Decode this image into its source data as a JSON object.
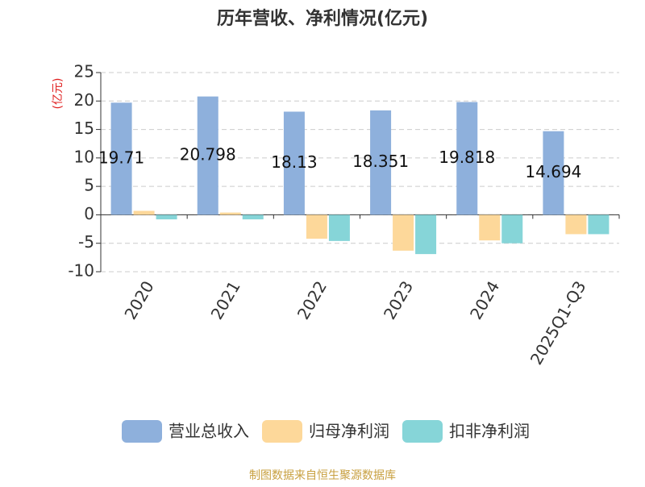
{
  "chart_data": {
    "type": "bar",
    "title": "历年营收、净利情况(亿元)",
    "y_label": "(亿元)",
    "categories": [
      "2020",
      "2021",
      "2022",
      "2023",
      "2024",
      "2025Q1-Q3"
    ],
    "series": [
      {
        "name": "营业总收入",
        "color": "#8eb0dc",
        "values": [
          19.71,
          20.798,
          18.13,
          18.351,
          19.818,
          14.694
        ],
        "show_labels": true
      },
      {
        "name": "归母净利润",
        "color": "#fdd89a",
        "values": [
          0.7,
          0.4,
          -4.2,
          -6.3,
          -4.5,
          -3.4
        ],
        "show_labels": false
      },
      {
        "name": "扣非净利润",
        "color": "#86d5d8",
        "values": [
          -0.8,
          -0.8,
          -4.6,
          -6.9,
          -5.0,
          -3.4
        ],
        "show_labels": false
      }
    ],
    "ylim": [
      -10,
      25
    ],
    "yticks": [
      -10,
      -5,
      0,
      5,
      10,
      15,
      20,
      25
    ],
    "grid": true,
    "legend": "bottom",
    "source": "制图数据来自恒生聚源数据库"
  }
}
